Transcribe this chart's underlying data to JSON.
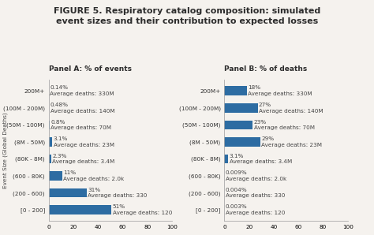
{
  "title": "FIGURE 5. Respiratory catalog composition: simulated\nevent sizes and their contribution to expected losses",
  "panel_a_label": "Panel A: % of events",
  "panel_b_label": "Panel B: % of deaths",
  "ylabel": "Event Size (Global Deaths)",
  "categories": [
    "200M+",
    "(100M - 200M)",
    "(50M - 100M)",
    "(8M - 50M)",
    "(80K - 8M)",
    "(600 - 80K)",
    "(200 - 600)",
    "[0 - 200]"
  ],
  "panel_a_values": [
    0.14,
    0.48,
    0.8,
    3.1,
    2.3,
    11,
    31,
    51
  ],
  "panel_a_labels": [
    "0.14%\nAverage deaths: 330M",
    "0.48%\nAverage deaths: 140M",
    "0.8%\nAverage deaths: 70M",
    "3.1%\nAverage deaths: 23M",
    "2.3%\nAverage deaths: 3.4M",
    "11%\nAverage deaths: 2.0k",
    "31%\nAverage deaths: 330",
    "51%\nAverage deaths: 120"
  ],
  "panel_b_values": [
    18,
    27,
    23,
    29,
    3.1,
    0.009,
    0.004,
    0.003
  ],
  "panel_b_labels": [
    "18%\nAverage deaths: 330M",
    "27%\nAverage deaths: 140M",
    "23%\nAverage deaths: 70M",
    "29%\nAverage deaths: 23M",
    "3.1%\nAverage deaths: 3.4M",
    "0.009%\nAverage deaths: 2.0k",
    "0.004%\nAverage deaths: 330",
    "0.003%\nAverage deaths: 120"
  ],
  "bar_color": "#2d6ca2",
  "background_color": "#f5f2ee",
  "title_fontsize": 8.0,
  "label_fontsize": 5.2,
  "tick_fontsize": 5.2,
  "panel_label_fontsize": 6.5
}
